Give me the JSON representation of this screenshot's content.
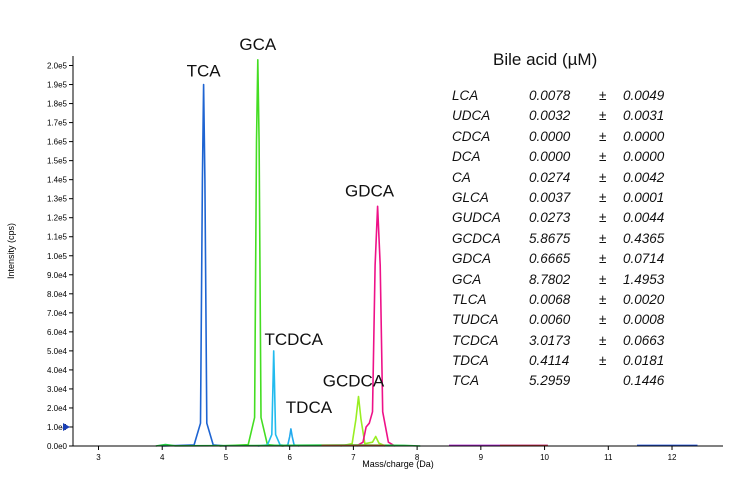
{
  "chart_data": {
    "type": "line",
    "xlabel": "Mass/charge (Da)",
    "ylabel": "Intensity (cps)",
    "xlim": [
      2.6,
      12.8
    ],
    "ylim": [
      0,
      205000
    ],
    "x_ticks": [
      3,
      4,
      5,
      6,
      7,
      8,
      9,
      10,
      11,
      12
    ],
    "x_tick_labels": [
      "3",
      "4",
      "5",
      "6",
      "7",
      "8",
      "9",
      "10",
      "11",
      "12"
    ],
    "y_ticks": [
      0,
      10000,
      20000,
      30000,
      40000,
      50000,
      60000,
      70000,
      80000,
      90000,
      100000,
      110000,
      120000,
      130000,
      140000,
      150000,
      160000,
      170000,
      180000,
      190000,
      200000
    ],
    "y_tick_labels": [
      "0.0e0",
      "1.0e4",
      "2.0e4",
      "3.0e4",
      "4.0e4",
      "5.0e4",
      "6.0e4",
      "7.0e4",
      "8.0e4",
      "9.0e4",
      "1.0e5",
      "1.1e5",
      "1.2e5",
      "1.3e5",
      "1.4e5",
      "1.5e5",
      "1.6e5",
      "1.7e5",
      "1.8e5",
      "1.9e5",
      "2.0e5"
    ],
    "grid": false,
    "legend": "none",
    "peaks": [
      {
        "label": "TCA",
        "x": 4.65,
        "y": 190000,
        "color": "#1e64d2"
      },
      {
        "label": "GCA",
        "x": 5.5,
        "y": 203000,
        "color": "#44dd22"
      },
      {
        "label": "TCDCA",
        "x": 5.75,
        "y": 50000,
        "color": "#22bbee"
      },
      {
        "label": "TDCA",
        "x": 6.02,
        "y": 9000,
        "color": "#22aaee"
      },
      {
        "label": "GCDCA",
        "x": 7.08,
        "y": 26000,
        "color": "#99ee22"
      },
      {
        "label": "GDCA",
        "x": 7.38,
        "y": 126000,
        "color": "#ee1188"
      }
    ],
    "series": [
      {
        "color": "#1e64d2",
        "x": [
          4.0,
          4.5,
          4.6,
          4.63,
          4.65,
          4.67,
          4.7,
          4.8,
          5.0
        ],
        "y": [
          0,
          600,
          12000,
          140000,
          190000,
          140000,
          12000,
          600,
          0
        ]
      },
      {
        "color": "#44dd22",
        "x": [
          4.9,
          5.35,
          5.45,
          5.48,
          5.5,
          5.52,
          5.55,
          5.65,
          5.9
        ],
        "y": [
          0,
          700,
          15000,
          160000,
          203000,
          160000,
          15000,
          700,
          0
        ]
      },
      {
        "color": "#22bbee",
        "x": [
          5.5,
          5.65,
          5.72,
          5.74,
          5.75,
          5.76,
          5.78,
          5.85,
          6.0
        ],
        "y": [
          0,
          600,
          6000,
          35000,
          50000,
          35000,
          6000,
          600,
          0
        ]
      },
      {
        "color": "#22aaee",
        "x": [
          5.9,
          5.97,
          6.0,
          6.02,
          6.04,
          6.07,
          6.15
        ],
        "y": [
          0,
          600,
          5000,
          9000,
          5000,
          600,
          0
        ]
      },
      {
        "color": "#99ee22",
        "x": [
          6.8,
          6.98,
          7.04,
          7.08,
          7.12,
          7.18,
          7.3,
          7.35,
          7.4,
          7.5
        ],
        "y": [
          0,
          1200,
          14000,
          26000,
          14000,
          1200,
          2000,
          5000,
          1500,
          0
        ]
      },
      {
        "color": "#ee1188",
        "x": [
          7.05,
          7.15,
          7.2,
          7.25,
          7.3,
          7.34,
          7.38,
          7.42,
          7.46,
          7.55,
          7.65
        ],
        "y": [
          0,
          2000,
          10000,
          12000,
          18000,
          95000,
          126000,
          95000,
          18000,
          2000,
          0
        ]
      },
      {
        "color": "#22cc44",
        "x": [
          3.9,
          4.05,
          4.2,
          5.4,
          6.3,
          7.0,
          7.8,
          8.05
        ],
        "y": [
          0,
          800,
          100,
          200,
          400,
          600,
          300,
          0
        ]
      },
      {
        "color": "#cc6633",
        "x": [
          6.5,
          7.5
        ],
        "y": [
          300,
          300
        ]
      },
      {
        "color": "#aa22cc",
        "x": [
          8.5,
          10.05
        ],
        "y": [
          300,
          300
        ]
      },
      {
        "color": "#cc3333",
        "x": [
          9.3,
          10.05
        ],
        "y": [
          200,
          200
        ]
      },
      {
        "color": "#2255dd",
        "x": [
          11.45,
          12.4
        ],
        "y": [
          300,
          300
        ]
      }
    ],
    "y_marker": 10000,
    "marker_color": "#1a3fb5"
  },
  "table": {
    "title": "Bile acid (µM)",
    "rows": [
      {
        "name": "LCA",
        "mean": "0.0078",
        "pm": "±",
        "sd": "0.0049"
      },
      {
        "name": "UDCA",
        "mean": "0.0032",
        "pm": "±",
        "sd": "0.0031"
      },
      {
        "name": "CDCA",
        "mean": "0.0000",
        "pm": "±",
        "sd": "0.0000"
      },
      {
        "name": "DCA",
        "mean": "0.0000",
        "pm": "±",
        "sd": "0.0000"
      },
      {
        "name": "CA",
        "mean": "0.0274",
        "pm": "±",
        "sd": "0.0042"
      },
      {
        "name": "GLCA",
        "mean": "0.0037",
        "pm": "±",
        "sd": "0.0001"
      },
      {
        "name": "GUDCA",
        "mean": "0.0273",
        "pm": "±",
        "sd": "0.0044"
      },
      {
        "name": "GCDCA",
        "mean": "5.8675",
        "pm": "±",
        "sd": "0.4365"
      },
      {
        "name": "GDCA",
        "mean": "0.6665",
        "pm": "±",
        "sd": "0.0714"
      },
      {
        "name": "GCA",
        "mean": "8.7802",
        "pm": "±",
        "sd": "1.4953"
      },
      {
        "name": "TLCA",
        "mean": "0.0068",
        "pm": "±",
        "sd": "0.0020"
      },
      {
        "name": "TUDCA",
        "mean": "0.0060",
        "pm": "±",
        "sd": "0.0008"
      },
      {
        "name": "TCDCA",
        "mean": "3.0173",
        "pm": "±",
        "sd": "0.0663"
      },
      {
        "name": "TDCA",
        "mean": "0.4114",
        "pm": "±",
        "sd": "0.0181"
      },
      {
        "name": "TCA",
        "mean": "5.2959",
        "pm": "",
        "sd": "0.1446"
      }
    ]
  }
}
